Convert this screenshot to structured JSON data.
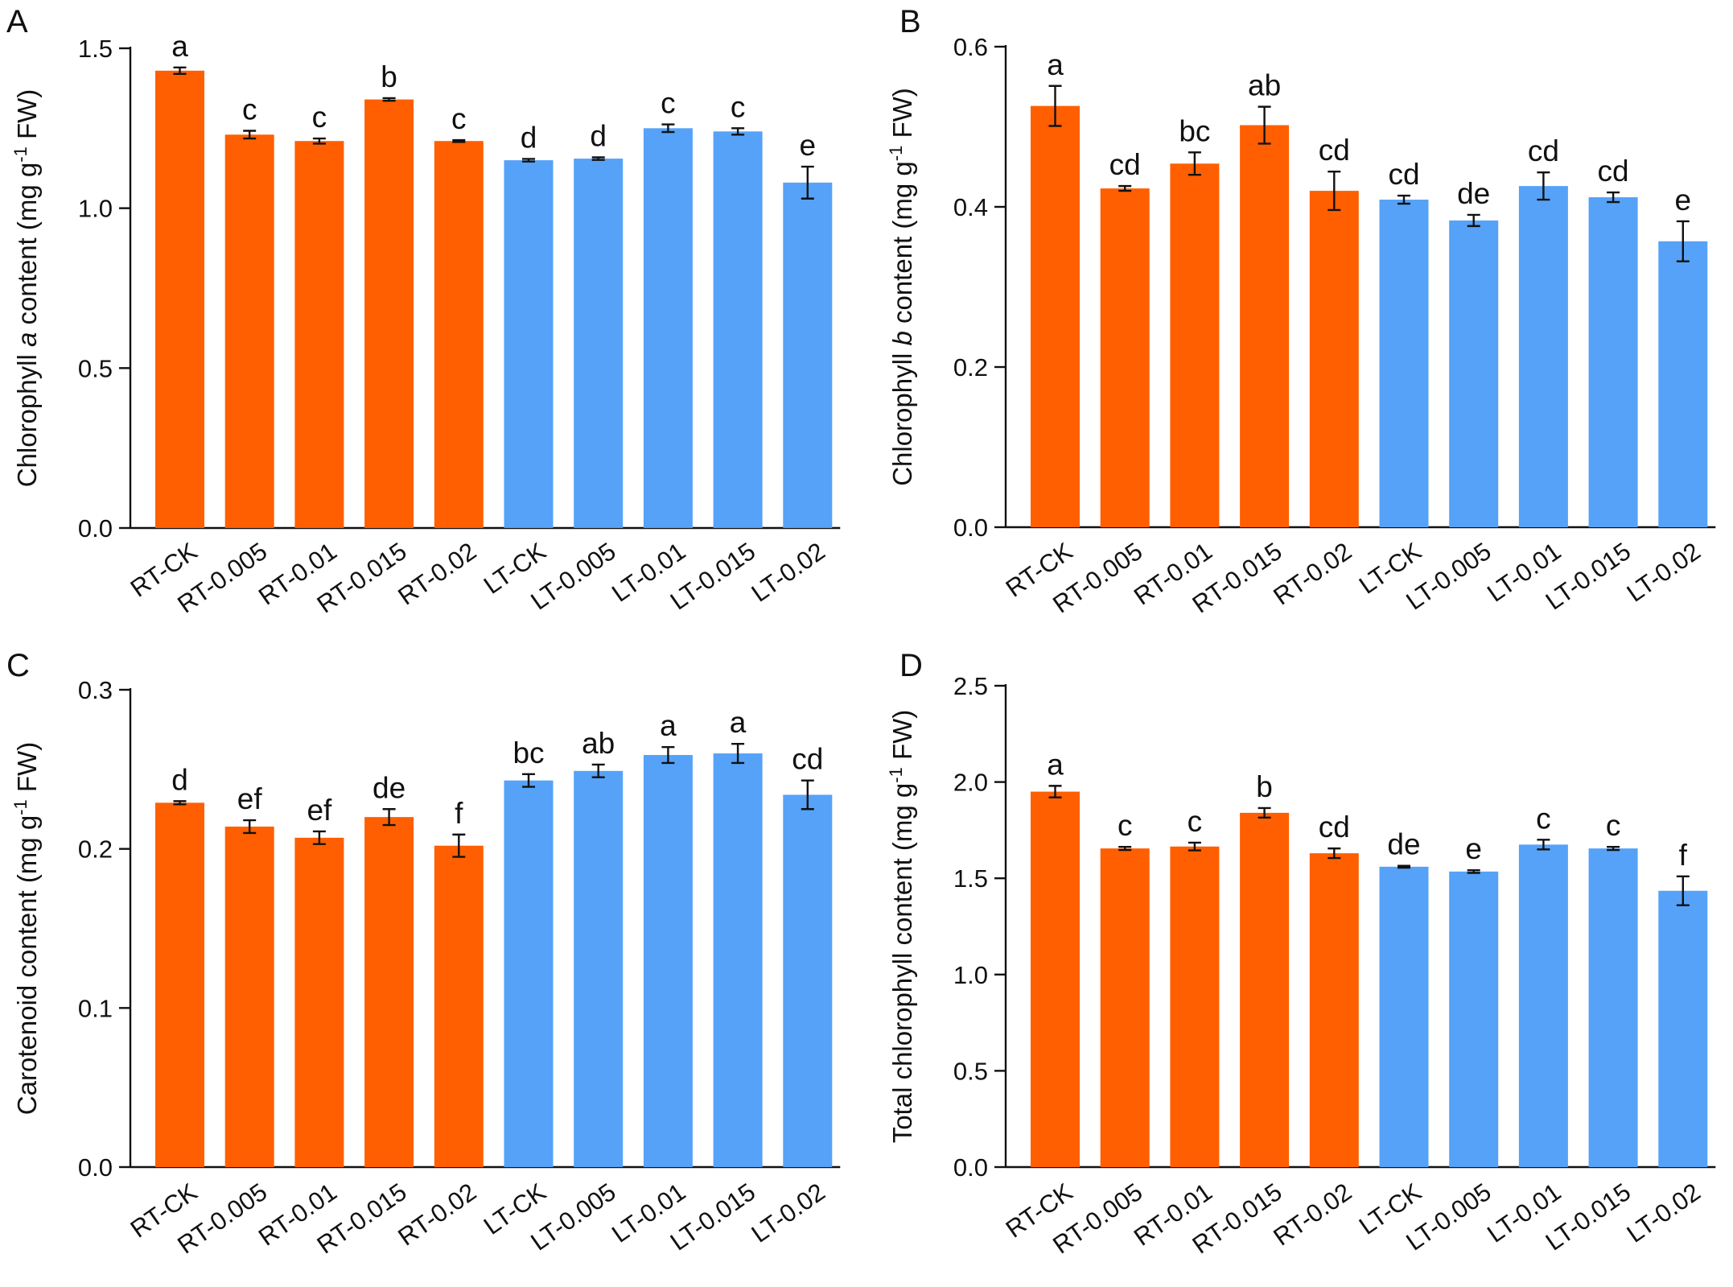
{
  "colors": {
    "rt": "#FF5F00",
    "lt": "#55A2F8",
    "axis": "#111111"
  },
  "chart_data": [
    {
      "panel": "A",
      "type": "bar",
      "ylabel_parts": [
        "Chlorophyll ",
        "a",
        " content (mg g",
        "-1",
        " FW)"
      ],
      "ylim": [
        0,
        1.5
      ],
      "yticks": [
        "0.0",
        "0.5",
        "1.0",
        "1.5"
      ],
      "ytick_values": [
        0,
        0.5,
        1.0,
        1.5
      ],
      "categories": [
        "RT-CK",
        "RT-0.005",
        "RT-0.01",
        "RT-0.015",
        "RT-0.02",
        "LT-CK",
        "LT-0.005",
        "LT-0.01",
        "LT-0.015",
        "LT-0.02"
      ],
      "values": [
        1.43,
        1.23,
        1.21,
        1.34,
        1.21,
        1.15,
        1.155,
        1.25,
        1.24,
        1.08
      ],
      "errors": [
        0.01,
        0.012,
        0.008,
        0.004,
        0.003,
        0.004,
        0.004,
        0.012,
        0.01,
        0.05
      ],
      "groups": [
        "rt",
        "rt",
        "rt",
        "rt",
        "rt",
        "lt",
        "lt",
        "lt",
        "lt",
        "lt"
      ],
      "letters": [
        "a",
        "c",
        "c",
        "b",
        "c",
        "d",
        "d",
        "c",
        "c",
        "e"
      ]
    },
    {
      "panel": "B",
      "type": "bar",
      "ylabel_parts": [
        "Chlorophyll ",
        "b",
        " content (mg g",
        "-1",
        " FW)"
      ],
      "ylim": [
        0,
        0.6
      ],
      "yticks": [
        "0.0",
        "0.2",
        "0.4",
        "0.6"
      ],
      "ytick_values": [
        0,
        0.2,
        0.4,
        0.6
      ],
      "categories": [
        "RT-CK",
        "RT-0.005",
        "RT-0.01",
        "RT-0.015",
        "RT-0.02",
        "LT-CK",
        "LT-0.005",
        "LT-0.01",
        "LT-0.015",
        "LT-0.02"
      ],
      "values": [
        0.526,
        0.423,
        0.454,
        0.502,
        0.42,
        0.409,
        0.383,
        0.426,
        0.412,
        0.357
      ],
      "errors": [
        0.025,
        0.003,
        0.014,
        0.023,
        0.024,
        0.005,
        0.007,
        0.017,
        0.006,
        0.025
      ],
      "groups": [
        "rt",
        "rt",
        "rt",
        "rt",
        "rt",
        "lt",
        "lt",
        "lt",
        "lt",
        "lt"
      ],
      "letters": [
        "a",
        "cd",
        "bc",
        "ab",
        "cd",
        "cd",
        "de",
        "cd",
        "cd",
        "e"
      ]
    },
    {
      "panel": "C",
      "type": "bar",
      "ylabel_parts": [
        "Carotenoid content (mg g",
        "-1",
        " FW)"
      ],
      "ylim": [
        0,
        0.3
      ],
      "yticks": [
        "0.0",
        "0.1",
        "0.2",
        "0.3"
      ],
      "ytick_values": [
        0,
        0.1,
        0.2,
        0.3
      ],
      "categories": [
        "RT-CK",
        "RT-0.005",
        "RT-0.01",
        "RT-0.015",
        "RT-0.02",
        "LT-CK",
        "LT-0.005",
        "LT-0.01",
        "LT-0.015",
        "LT-0.02"
      ],
      "values": [
        0.229,
        0.214,
        0.207,
        0.22,
        0.202,
        0.243,
        0.249,
        0.259,
        0.26,
        0.234
      ],
      "errors": [
        0.001,
        0.004,
        0.004,
        0.005,
        0.007,
        0.004,
        0.004,
        0.005,
        0.006,
        0.009
      ],
      "groups": [
        "rt",
        "rt",
        "rt",
        "rt",
        "rt",
        "lt",
        "lt",
        "lt",
        "lt",
        "lt"
      ],
      "letters": [
        "d",
        "ef",
        "ef",
        "de",
        "f",
        "bc",
        "ab",
        "a",
        "a",
        "cd"
      ]
    },
    {
      "panel": "D",
      "type": "bar",
      "ylabel_parts": [
        "Total chlorophyll  content (mg g",
        "-1",
        " FW)"
      ],
      "ylim": [
        0,
        2.5
      ],
      "yticks": [
        "0.0",
        "0.5",
        "1.0",
        "1.5",
        "2.0",
        "2.5"
      ],
      "ytick_values": [
        0,
        0.5,
        1.0,
        1.5,
        2.0,
        2.5
      ],
      "categories": [
        "RT-CK",
        "RT-0.005",
        "RT-0.01",
        "RT-0.015",
        "RT-0.02",
        "LT-CK",
        "LT-0.005",
        "LT-0.01",
        "LT-0.015",
        "LT-0.02"
      ],
      "values": [
        1.95,
        1.655,
        1.665,
        1.84,
        1.63,
        1.56,
        1.535,
        1.675,
        1.655,
        1.435
      ],
      "errors": [
        0.03,
        0.008,
        0.02,
        0.025,
        0.025,
        0.005,
        0.007,
        0.025,
        0.008,
        0.075
      ],
      "groups": [
        "rt",
        "rt",
        "rt",
        "rt",
        "rt",
        "lt",
        "lt",
        "lt",
        "lt",
        "lt"
      ],
      "letters": [
        "a",
        "c",
        "c",
        "b",
        "cd",
        "de",
        "e",
        "c",
        "c",
        "f"
      ]
    }
  ]
}
